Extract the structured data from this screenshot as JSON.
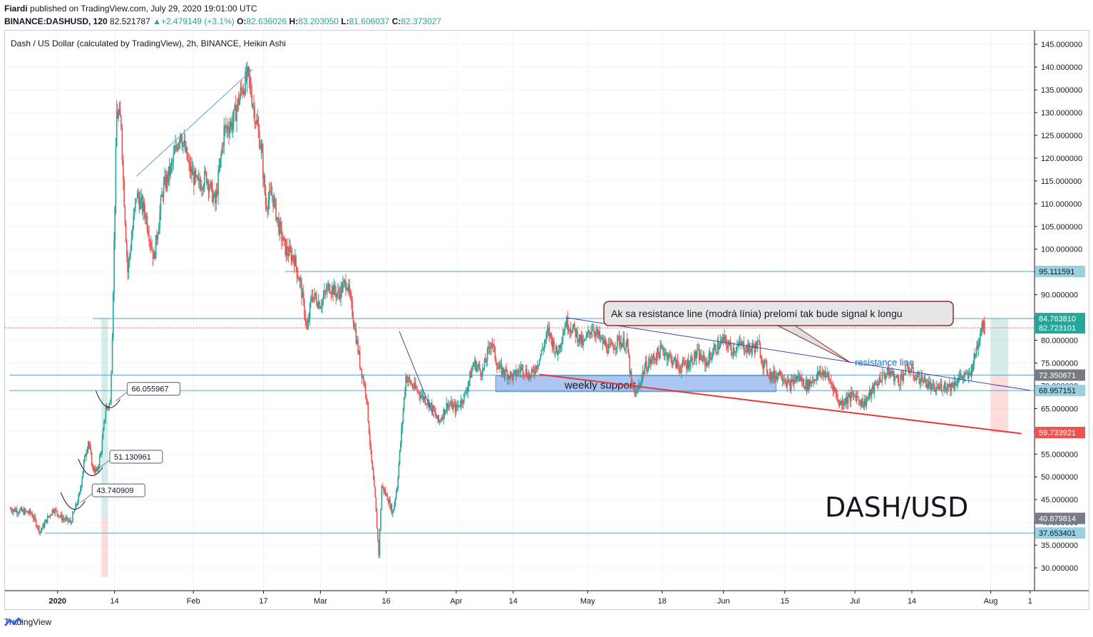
{
  "header": {
    "author": "Fiardi",
    "published": "published on TradingView.com, July 29, 2020 19:01:00 UTC",
    "symbol": "BINANCE:DASHUSD, 120",
    "last": "82.521787",
    "change": "+2.479149 (+3.1%)",
    "o_label": "O:",
    "o": "82.636026",
    "h_label": "H:",
    "h": "83.203050",
    "l_label": "L:",
    "l": "81.606037",
    "c_label": "C:",
    "c": "82.373027"
  },
  "footer": {
    "brand": "TradingView"
  },
  "colors": {
    "up": "#26a69a",
    "down": "#ef5350",
    "hline": "#5ba3c9",
    "resistance": "#3949ab",
    "support_line": "#e53935",
    "support_zone": "#90b4f0"
  },
  "chart_data": {
    "type": "candlestick",
    "title": "Dash / US Dollar (calculated by TradingView), 2h, BINANCE, Heikin Ashi",
    "watermark": "DASH/USD",
    "ylim": [
      25,
      148
    ],
    "y_ticks": [
      "145.000000",
      "140.000000",
      "135.000000",
      "130.000000",
      "125.000000",
      "120.000000",
      "115.000000",
      "110.000000",
      "105.000000",
      "100.000000",
      "95.000000",
      "90.000000",
      "85.000000",
      "80.000000",
      "75.000000",
      "70.000000",
      "65.000000",
      "60.000000",
      "55.000000",
      "50.000000",
      "45.000000",
      "40.000000",
      "35.000000",
      "30.000000"
    ],
    "y_tick_values": [
      145,
      140,
      135,
      130,
      125,
      120,
      115,
      110,
      105,
      100,
      95,
      90,
      85,
      80,
      75,
      70,
      65,
      60,
      55,
      50,
      45,
      40,
      35,
      30
    ],
    "x_ticks": [
      {
        "label": "2020",
        "day": 0
      },
      {
        "label": "14",
        "day": 13
      },
      {
        "label": "Feb",
        "day": 31
      },
      {
        "label": "17",
        "day": 47
      },
      {
        "label": "Mar",
        "day": 60
      },
      {
        "label": "16",
        "day": 75
      },
      {
        "label": "Apr",
        "day": 91
      },
      {
        "label": "14",
        "day": 104
      },
      {
        "label": "May",
        "day": 121
      },
      {
        "label": "18",
        "day": 138
      },
      {
        "label": "Jun",
        "day": 152
      },
      {
        "label": "15",
        "day": 166
      },
      {
        "label": "Jul",
        "day": 182
      },
      {
        "label": "14",
        "day": 195
      },
      {
        "label": "Aug",
        "day": 213
      },
      {
        "label": "1",
        "day": 222
      }
    ],
    "price_path": [
      [
        -11,
        43
      ],
      [
        -6,
        42
      ],
      [
        -4,
        38
      ],
      [
        -1,
        43
      ],
      [
        1,
        41
      ],
      [
        3,
        40
      ],
      [
        5,
        46
      ],
      [
        6,
        53
      ],
      [
        7,
        58
      ],
      [
        8,
        52
      ],
      [
        9,
        51
      ],
      [
        10,
        56
      ],
      [
        11,
        65
      ],
      [
        12,
        66
      ],
      [
        12.5,
        82
      ],
      [
        13.5,
        130
      ],
      [
        14.5,
        128
      ],
      [
        15,
        115
      ],
      [
        16,
        95
      ],
      [
        18,
        112
      ],
      [
        20,
        108
      ],
      [
        22,
        98
      ],
      [
        24,
        113
      ],
      [
        26,
        118
      ],
      [
        28,
        126
      ],
      [
        30,
        118
      ],
      [
        32,
        114
      ],
      [
        34,
        116
      ],
      [
        36,
        110
      ],
      [
        38,
        126
      ],
      [
        40,
        128
      ],
      [
        42,
        135
      ],
      [
        43.5,
        138
      ],
      [
        45,
        130
      ],
      [
        46.5,
        122
      ],
      [
        47.5,
        110
      ],
      [
        49,
        112
      ],
      [
        50.5,
        105
      ],
      [
        52,
        100
      ],
      [
        54,
        98
      ],
      [
        55.5,
        92
      ],
      [
        57,
        82
      ],
      [
        58,
        90
      ],
      [
        60,
        88
      ],
      [
        62,
        92
      ],
      [
        64,
        90
      ],
      [
        66,
        93
      ],
      [
        67.5,
        85
      ],
      [
        69,
        75
      ],
      [
        70.5,
        68
      ],
      [
        71.5,
        55
      ],
      [
        72.5,
        45
      ],
      [
        73.3,
        33
      ],
      [
        74,
        48
      ],
      [
        75.5,
        45
      ],
      [
        76.5,
        42
      ],
      [
        77.5,
        48
      ],
      [
        78.5,
        60
      ],
      [
        79.5,
        72
      ],
      [
        81,
        70
      ],
      [
        83,
        68
      ],
      [
        85,
        66
      ],
      [
        87,
        62
      ],
      [
        89,
        66
      ],
      [
        91,
        65
      ],
      [
        93,
        68
      ],
      [
        95,
        75
      ],
      [
        97,
        73
      ],
      [
        99,
        80
      ],
      [
        100.5,
        74
      ],
      [
        102,
        73
      ],
      [
        104,
        72
      ],
      [
        106,
        74
      ],
      [
        108,
        72
      ],
      [
        110,
        76
      ],
      [
        112,
        82
      ],
      [
        114,
        77
      ],
      [
        116,
        84
      ],
      [
        118,
        82
      ],
      [
        120,
        79
      ],
      [
        122,
        83
      ],
      [
        124,
        80
      ],
      [
        126,
        78
      ],
      [
        128,
        80
      ],
      [
        130,
        79
      ],
      [
        131,
        70
      ],
      [
        132,
        68
      ],
      [
        134,
        74
      ],
      [
        136,
        76
      ],
      [
        138,
        78
      ],
      [
        140,
        76
      ],
      [
        142,
        74
      ],
      [
        144,
        75
      ],
      [
        146,
        77
      ],
      [
        148,
        75
      ],
      [
        150,
        78
      ],
      [
        152,
        80
      ],
      [
        154,
        78
      ],
      [
        156,
        79
      ],
      [
        158,
        78
      ],
      [
        160,
        79
      ],
      [
        161,
        75
      ],
      [
        163,
        72
      ],
      [
        165,
        73
      ],
      [
        167,
        70
      ],
      [
        169,
        72
      ],
      [
        171,
        70
      ],
      [
        173,
        72
      ],
      [
        175,
        73
      ],
      [
        177,
        70
      ],
      [
        178.5,
        66
      ],
      [
        180,
        67
      ],
      [
        182,
        68
      ],
      [
        184,
        66
      ],
      [
        186,
        69
      ],
      [
        188,
        72
      ],
      [
        190,
        73
      ],
      [
        192,
        71
      ],
      [
        194,
        74
      ],
      [
        196,
        72
      ],
      [
        198,
        71
      ],
      [
        200,
        69
      ],
      [
        202,
        70
      ],
      [
        204,
        70
      ],
      [
        206,
        72
      ],
      [
        208,
        72
      ],
      [
        209,
        75
      ],
      [
        210,
        79
      ],
      [
        211,
        84
      ],
      [
        211.6,
        82.5
      ]
    ],
    "horizontal_levels": [
      {
        "value": 95.111591,
        "label": "95.111591",
        "from_day": 52
      },
      {
        "value": 84.76381,
        "label": "84.763810",
        "from_day": 8
      },
      {
        "value": 72.350671,
        "label": "72.350671",
        "from_day": -11
      },
      {
        "value": 68.957151,
        "label": "68.957151",
        "from_day": -11
      },
      {
        "value": 37.653401,
        "label": "37.653401",
        "from_day": -3
      }
    ],
    "price_markers": [
      {
        "value": 84.76381,
        "label": "84.763810",
        "color": "#26a69a"
      },
      {
        "value": 82.723101,
        "label": "82.723101",
        "color": "#26a69a"
      },
      {
        "value": 72.350671,
        "label": "72.350671",
        "color": "#787b86"
      },
      {
        "value": 68.957151,
        "label": "68.957151",
        "color": "#9ad1e0"
      },
      {
        "value": 59.733921,
        "label": "59.733921",
        "color": "#ef5350"
      },
      {
        "value": 40.879814,
        "label": "40.879814",
        "color": "#787b86"
      },
      {
        "value": 95.111591,
        "label": "95.111591",
        "color": "#9ad1e0"
      },
      {
        "value": 37.653401,
        "label": "37.653401",
        "color": "#9ad1e0"
      }
    ],
    "current_price": 82.723101,
    "trend_lines": [
      {
        "name": "resistance",
        "from": [
          116,
          85
        ],
        "to": [
          222,
          69
        ],
        "color": "#3949ab",
        "width": 1
      },
      {
        "name": "support",
        "from": [
          110,
          72.5
        ],
        "to": [
          220,
          59.5
        ],
        "color": "#e53935",
        "width": 2
      },
      {
        "name": "uptrend-jan",
        "from": [
          18,
          116
        ],
        "to": [
          44.5,
          139.5
        ],
        "color": "#5ba3c9",
        "width": 1
      },
      {
        "name": "downtrend-apr",
        "from": [
          78,
          82
        ],
        "to": [
          86,
          63
        ],
        "color": "#3949ab",
        "width": 1
      }
    ],
    "support_zone": {
      "x0": 100,
      "x1": 164,
      "y0": 68.7,
      "y1": 72.2,
      "label": "weekly support"
    },
    "callouts": [
      {
        "label": "66.055967",
        "value": 66.055967,
        "anchor_day": 12
      },
      {
        "label": "51.130961",
        "value": 51.130961,
        "anchor_day": 8
      },
      {
        "label": "43.740909",
        "value": 43.740909,
        "anchor_day": 4
      }
    ],
    "note": "Ak sa resistance line (modrá línia) prelomí tak bude signal k longu",
    "resistance_label": "resistance line",
    "position_tool": {
      "x0": 213,
      "x1": 217,
      "entry": 72.350671,
      "target": 84.76381,
      "stop": 59.733921
    },
    "left_position_tool": {
      "x0": 10,
      "x1": 11.5,
      "entry": 40.879814,
      "target": 84.76381,
      "stop": 28
    }
  }
}
